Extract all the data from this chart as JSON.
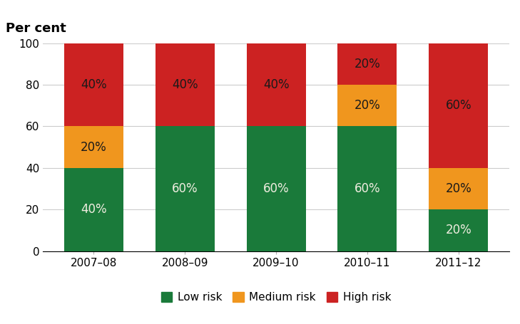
{
  "categories": [
    "2007–08",
    "2008–09",
    "2009–10",
    "2010–11",
    "2011–12"
  ],
  "low_risk": [
    40,
    60,
    60,
    60,
    20
  ],
  "medium_risk": [
    20,
    0,
    0,
    20,
    20
  ],
  "high_risk": [
    40,
    40,
    40,
    20,
    60
  ],
  "low_color": "#1a7a3a",
  "medium_color": "#f0961e",
  "high_color": "#cc2222",
  "ylabel_title": "Per cent",
  "ylim": [
    0,
    100
  ],
  "yticks": [
    0,
    20,
    40,
    60,
    80,
    100
  ],
  "legend_labels": [
    "Low risk",
    "Medium risk",
    "High risk"
  ],
  "bar_width": 0.65,
  "label_fontsize": 12,
  "tick_fontsize": 11,
  "legend_fontsize": 11,
  "title_fontsize": 13,
  "background_color": "#ffffff",
  "grid_color": "#cccccc",
  "text_white": "#f0ede0",
  "text_dark": "#1a1a1a"
}
